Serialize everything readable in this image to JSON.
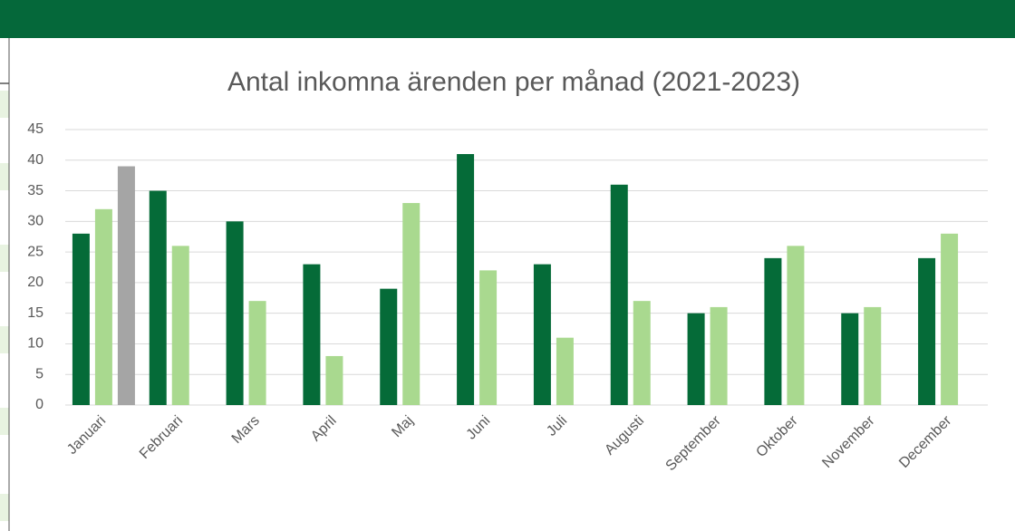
{
  "chart_data": {
    "type": "bar",
    "title": "Antal inkomna ärenden per månad (2021-2023)",
    "categories": [
      "Januari",
      "Februari",
      "Mars",
      "April",
      "Maj",
      "Juni",
      "Juli",
      "Augusti",
      "September",
      "Oktober",
      "November",
      "December"
    ],
    "series": [
      {
        "color": "#056b38",
        "values": [
          28,
          35,
          30,
          23,
          19,
          41,
          23,
          36,
          15,
          24,
          15,
          24
        ]
      },
      {
        "color": "#a9d98f",
        "values": [
          32,
          26,
          17,
          8,
          33,
          22,
          11,
          17,
          16,
          26,
          16,
          28
        ]
      },
      {
        "color": "#a5a5a5",
        "values": [
          39,
          null,
          null,
          null,
          null,
          null,
          null,
          null,
          null,
          null,
          null,
          null
        ]
      }
    ],
    "ylim": [
      0,
      45
    ],
    "yticks": [
      0,
      5,
      10,
      15,
      20,
      25,
      30,
      35,
      40,
      45
    ],
    "grid": true
  }
}
